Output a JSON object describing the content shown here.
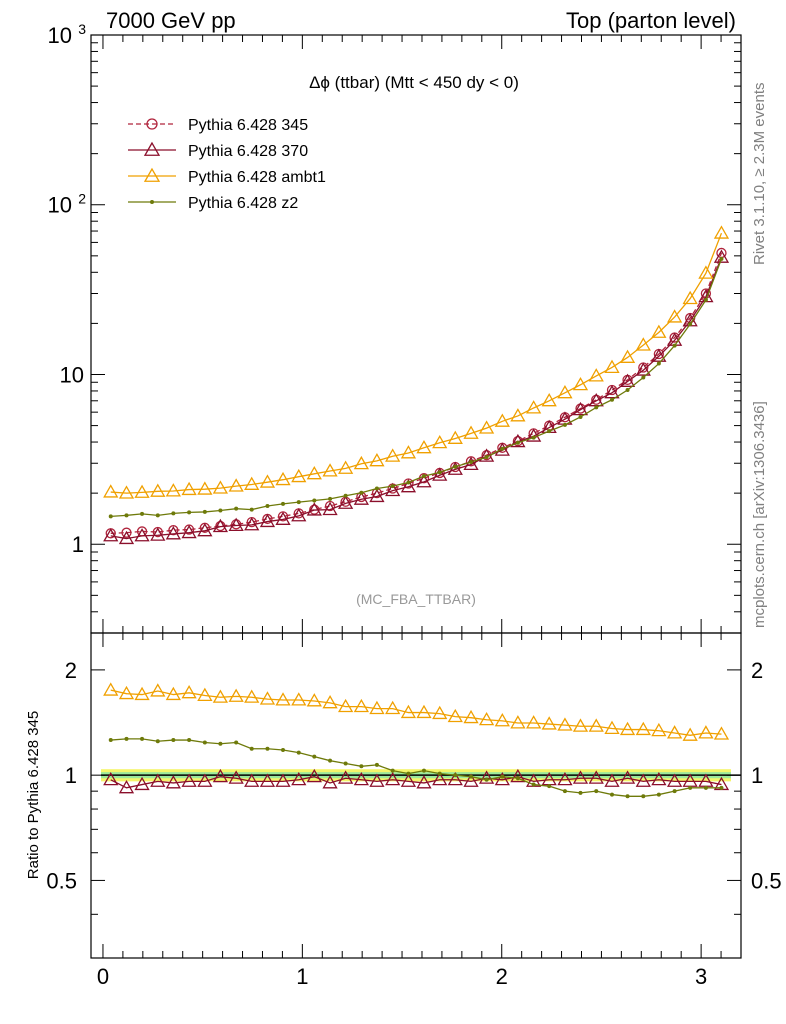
{
  "header": {
    "left": "7000 GeV pp",
    "right": "Top (parton level)"
  },
  "side_labels": {
    "rivet": "Rivet 3.1.10, ≥ 2.3M events",
    "mcplots": "mcplots.cern.ch [arXiv:1306.3436]"
  },
  "chart_data": [
    {
      "type": "line",
      "title": "Δϕ (ttbar) (Mtt < 450 dy < 0)",
      "analysis_tag": "(MC_FBA_TTBAR)",
      "yscale": "log",
      "xlim": [
        -0.06,
        3.2
      ],
      "ylim": [
        0.3,
        1000
      ],
      "y_ticks": [
        {
          "value": 1,
          "label": "1"
        },
        {
          "value": 10,
          "label": "10"
        },
        {
          "value": 100,
          "label": "10",
          "exp": "2"
        },
        {
          "value": 1000,
          "label": "10",
          "exp": "3"
        }
      ],
      "legend_position": "top-left",
      "x": [
        0.039,
        0.118,
        0.196,
        0.275,
        0.353,
        0.432,
        0.511,
        0.589,
        0.668,
        0.746,
        0.825,
        0.903,
        0.982,
        1.06,
        1.139,
        1.217,
        1.296,
        1.374,
        1.453,
        1.532,
        1.61,
        1.689,
        1.767,
        1.846,
        1.924,
        2.003,
        2.081,
        2.16,
        2.238,
        2.317,
        2.395,
        2.474,
        2.553,
        2.631,
        2.71,
        2.788,
        2.867,
        2.945,
        3.024,
        3.102
      ],
      "series": [
        {
          "name": "Pythia 6.428 345",
          "color": "#b0243c",
          "marker": "circle",
          "dashed": true,
          "values": [
            1.16,
            1.17,
            1.19,
            1.18,
            1.21,
            1.22,
            1.25,
            1.28,
            1.31,
            1.35,
            1.41,
            1.46,
            1.52,
            1.6,
            1.68,
            1.78,
            1.9,
            2.0,
            2.13,
            2.28,
            2.45,
            2.63,
            2.85,
            3.08,
            3.35,
            3.7,
            4.05,
            4.5,
            5.0,
            5.6,
            6.3,
            7.1,
            8.1,
            9.3,
            11.0,
            13.2,
            16.5,
            21.5,
            30.0,
            52.0
          ]
        },
        {
          "name": "Pythia 6.428 370",
          "color": "#8b0f2b",
          "marker": "triangle",
          "dashed": false,
          "values": [
            1.12,
            1.08,
            1.12,
            1.13,
            1.15,
            1.17,
            1.2,
            1.27,
            1.29,
            1.3,
            1.36,
            1.4,
            1.47,
            1.59,
            1.6,
            1.74,
            1.84,
            1.91,
            2.07,
            2.18,
            2.33,
            2.55,
            2.76,
            2.95,
            3.3,
            3.58,
            4.02,
            4.33,
            4.87,
            5.45,
            6.2,
            7.0,
            7.8,
            9.1,
            10.6,
            12.8,
            15.9,
            20.7,
            28.7,
            49.0
          ]
        },
        {
          "name": "Pythia 6.428 ambt1",
          "color": "#f0a000",
          "marker": "triangle",
          "dashed": false,
          "values": [
            2.03,
            2.0,
            2.02,
            2.05,
            2.06,
            2.1,
            2.11,
            2.14,
            2.2,
            2.25,
            2.32,
            2.4,
            2.5,
            2.6,
            2.7,
            2.8,
            2.98,
            3.1,
            3.3,
            3.45,
            3.7,
            3.96,
            4.2,
            4.5,
            4.83,
            5.3,
            5.7,
            6.35,
            7.0,
            7.8,
            8.7,
            9.8,
            11.0,
            12.6,
            14.9,
            17.7,
            21.8,
            28.0,
            39.5,
            68.0
          ]
        },
        {
          "name": "Pythia 6.428 z2",
          "color": "#6e7a0a",
          "marker": "dot",
          "dashed": false,
          "values": [
            1.46,
            1.48,
            1.51,
            1.48,
            1.52,
            1.54,
            1.55,
            1.58,
            1.62,
            1.6,
            1.68,
            1.73,
            1.77,
            1.81,
            1.85,
            1.93,
            2.01,
            2.13,
            2.2,
            2.31,
            2.52,
            2.65,
            2.86,
            3.05,
            3.26,
            3.65,
            3.96,
            4.25,
            4.64,
            5.05,
            5.62,
            6.4,
            7.1,
            8.1,
            9.6,
            11.6,
            14.8,
            19.8,
            27.5,
            48.0
          ]
        }
      ]
    },
    {
      "type": "line",
      "ylabel": "Ratio to Pythia 6.428 345",
      "xlim": [
        -0.06,
        3.2
      ],
      "ylim": [
        0.3,
        2.55
      ],
      "x_ticks": [
        0,
        1,
        2,
        3
      ],
      "y_ticks": [
        {
          "value": 0.5,
          "label": "0.5"
        },
        {
          "value": 1,
          "label": "1"
        },
        {
          "value": 2,
          "label": "2"
        }
      ],
      "reference_band": {
        "low": 0.96,
        "high": 1.04
      },
      "x": [
        0.039,
        0.118,
        0.196,
        0.275,
        0.353,
        0.432,
        0.511,
        0.589,
        0.668,
        0.746,
        0.825,
        0.903,
        0.982,
        1.06,
        1.139,
        1.217,
        1.296,
        1.374,
        1.453,
        1.532,
        1.61,
        1.689,
        1.767,
        1.846,
        1.924,
        2.003,
        2.081,
        2.16,
        2.238,
        2.317,
        2.395,
        2.474,
        2.553,
        2.631,
        2.71,
        2.788,
        2.867,
        2.945,
        3.024,
        3.102
      ],
      "series": [
        {
          "name": "Pythia 6.428 370",
          "color": "#8b0f2b",
          "marker": "triangle",
          "values": [
            0.97,
            0.92,
            0.94,
            0.96,
            0.95,
            0.96,
            0.96,
            0.99,
            0.98,
            0.96,
            0.96,
            0.96,
            0.97,
            0.99,
            0.95,
            0.98,
            0.97,
            0.96,
            0.97,
            0.96,
            0.95,
            0.97,
            0.97,
            0.96,
            0.98,
            0.97,
            0.99,
            0.96,
            0.97,
            0.97,
            0.98,
            0.98,
            0.96,
            0.98,
            0.96,
            0.97,
            0.96,
            0.96,
            0.96,
            0.94
          ]
        },
        {
          "name": "Pythia 6.428 ambt1",
          "color": "#f0a000",
          "marker": "triangle",
          "values": [
            1.75,
            1.71,
            1.7,
            1.74,
            1.7,
            1.72,
            1.69,
            1.67,
            1.68,
            1.67,
            1.65,
            1.64,
            1.64,
            1.63,
            1.61,
            1.57,
            1.57,
            1.55,
            1.55,
            1.51,
            1.51,
            1.5,
            1.47,
            1.46,
            1.44,
            1.43,
            1.41,
            1.41,
            1.4,
            1.39,
            1.38,
            1.38,
            1.36,
            1.35,
            1.35,
            1.34,
            1.32,
            1.3,
            1.32,
            1.31
          ]
        },
        {
          "name": "Pythia 6.428 z2",
          "color": "#6e7a0a",
          "marker": "dot",
          "values": [
            1.26,
            1.27,
            1.27,
            1.25,
            1.26,
            1.26,
            1.24,
            1.23,
            1.24,
            1.19,
            1.19,
            1.18,
            1.16,
            1.13,
            1.1,
            1.08,
            1.06,
            1.07,
            1.03,
            1.01,
            1.03,
            1.01,
            1.0,
            0.99,
            0.97,
            0.99,
            0.98,
            0.94,
            0.93,
            0.9,
            0.89,
            0.9,
            0.88,
            0.87,
            0.87,
            0.88,
            0.9,
            0.92,
            0.92,
            0.92
          ]
        }
      ]
    }
  ]
}
